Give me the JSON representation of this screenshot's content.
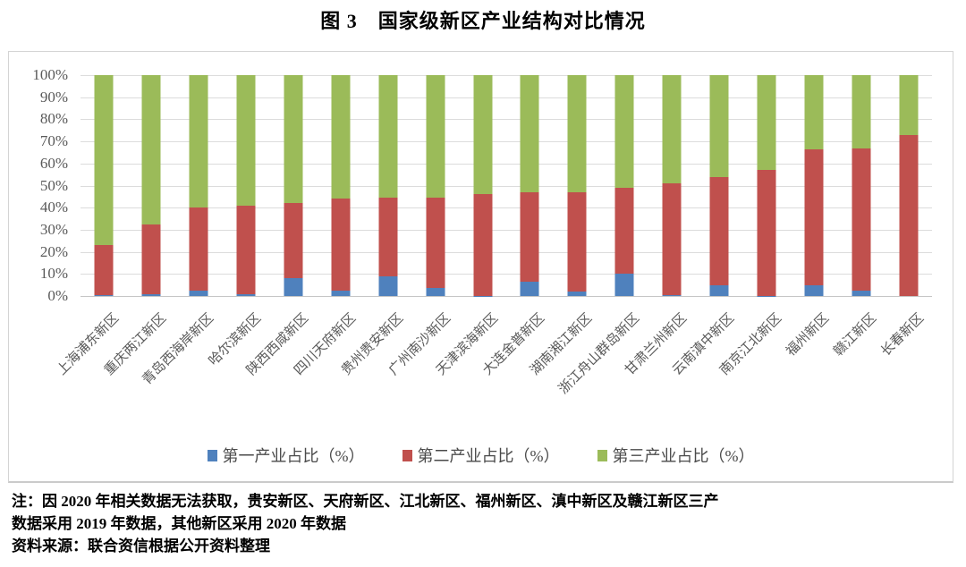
{
  "title": "图 3　国家级新区产业结构对比情况",
  "chart_data": {
    "type": "bar",
    "stacked": true,
    "title": "图 3　国家级新区产业结构对比情况",
    "xlabel": "",
    "ylabel": "",
    "ylim": [
      0,
      100
    ],
    "grid": true,
    "legend_position": "bottom",
    "y_axis": {
      "min": 0,
      "max": 100,
      "step": 10,
      "tick_suffix": "%",
      "tick_labels": [
        "0%",
        "10%",
        "20%",
        "30%",
        "40%",
        "50%",
        "60%",
        "70%",
        "80%",
        "90%",
        "100%"
      ]
    },
    "categories": [
      "上海浦东新区",
      "重庆两江新区",
      "青岛西海岸新区",
      "哈尔滨新区",
      "陕西西咸新区",
      "四川天府新区",
      "贵州贵安新区",
      "广州南沙新区",
      "天津滨海新区",
      "大连金普新区",
      "湖南湘江新区",
      "浙江舟山群岛新区",
      "甘肃兰州新区",
      "云南滇中新区",
      "南京江北新区",
      "福州新区",
      "赣江新区",
      "长春新区"
    ],
    "series": [
      {
        "name": "第一产业占比（%）",
        "color": "#4F81BD",
        "values": [
          0.3,
          0.8,
          2.4,
          0.7,
          8.0,
          2.4,
          9.0,
          3.5,
          0.1,
          6.3,
          2.1,
          10.0,
          0.6,
          5.0,
          0.1,
          5.0,
          2.3,
          0.0
        ]
      },
      {
        "name": "第二产业占比（%）",
        "color": "#C0504D",
        "values": [
          22.7,
          31.7,
          37.6,
          40.3,
          34.0,
          41.6,
          35.5,
          41.0,
          45.9,
          40.7,
          45.0,
          39.2,
          50.4,
          49.0,
          56.9,
          61.5,
          64.7,
          73.0
        ]
      },
      {
        "name": "第三产业占比（%）",
        "color": "#9BBB59",
        "values": [
          77.0,
          67.5,
          60.0,
          59.0,
          58.0,
          56.0,
          55.5,
          55.5,
          54.0,
          53.0,
          52.9,
          50.8,
          49.0,
          46.0,
          43.0,
          33.5,
          33.0,
          27.0
        ]
      }
    ]
  },
  "notes": {
    "line1": "注：因 2020 年相关数据无法获取，贵安新区、天府新区、江北新区、福州新区、滇中新区及赣江新区三产",
    "line2": "数据采用 2019 年数据，其他新区采用 2020 年数据",
    "source": "资料来源：联合资信根据公开资料整理"
  }
}
